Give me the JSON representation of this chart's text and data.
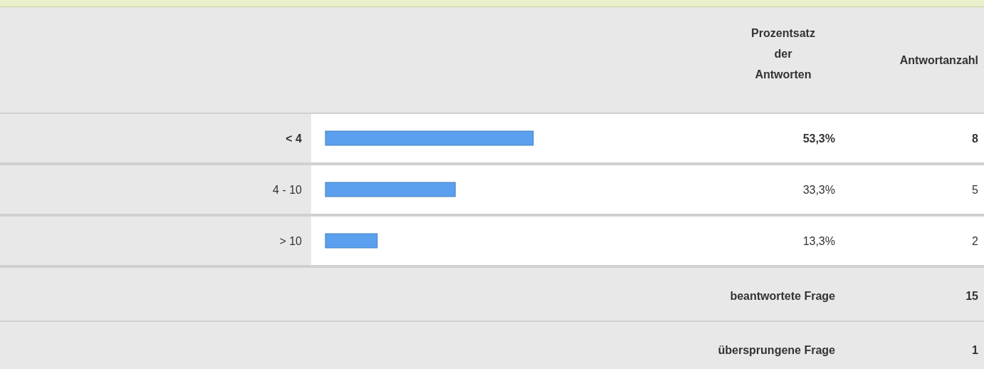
{
  "chart_data": {
    "type": "bar",
    "orientation": "horizontal",
    "categories": [
      "< 4",
      "4 - 10",
      "> 10"
    ],
    "values": [
      53.3,
      33.3,
      13.3
    ],
    "value_labels": [
      "53,3%",
      "33,3%",
      "13,3%"
    ],
    "color": "#5aa0ee",
    "annotations": [
      "Prozentsatz der Antworten",
      "Antwortanzahl",
      "8",
      "5",
      "2",
      "beantwortete Frage",
      "15",
      "übersprungene Frage",
      "1"
    ]
  }
}
